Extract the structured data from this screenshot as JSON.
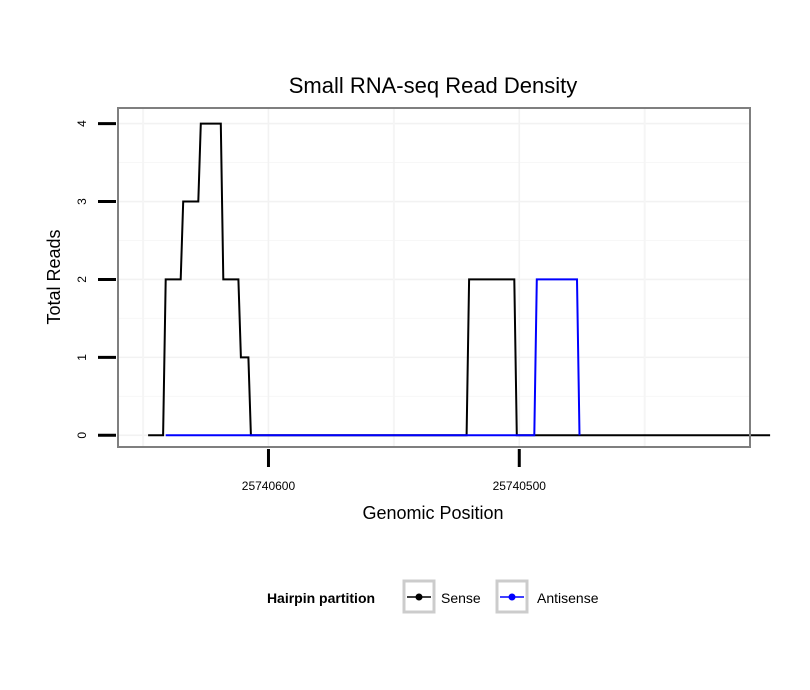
{
  "chart_data": {
    "type": "line",
    "title": "Small RNA-seq Read Density",
    "xlabel": "Genomic Position",
    "ylabel": "Total Reads",
    "x_reversed": true,
    "xlim": [
      25740660,
      25740408
    ],
    "ylim": [
      -0.15,
      4.2
    ],
    "x_ticks": [
      25740600,
      25740500
    ],
    "x_tick_labels": [
      "25740600",
      "25740500"
    ],
    "y_ticks": [
      0,
      1,
      2,
      3,
      4
    ],
    "y_tick_labels": [
      "0",
      "1",
      "2",
      "3",
      "4"
    ],
    "grid": true,
    "legend": {
      "title": "Hairpin partition",
      "position": "bottom"
    },
    "series": [
      {
        "name": "Sense",
        "color": "#000000",
        "x": [
          25740648,
          25740642,
          25740641,
          25740635,
          25740634,
          25740628,
          25740627,
          25740619,
          25740618,
          25740612,
          25740611,
          25740608,
          25740607,
          25740605,
          25740604,
          25740592,
          25740530,
          25740521,
          25740520,
          25740502,
          25740501,
          25740400
        ],
        "y": [
          0,
          0,
          2,
          2,
          3,
          3,
          4,
          4,
          2,
          2,
          1,
          1,
          0,
          0,
          0,
          0,
          0,
          0,
          2,
          2,
          0,
          0
        ]
      },
      {
        "name": "Antisense",
        "color": "#0000ff",
        "x": [
          25740641,
          25740604,
          25740502,
          25740494,
          25740493,
          25740477,
          25740476
        ],
        "y": [
          0,
          0,
          0,
          0,
          2,
          2,
          0
        ]
      }
    ]
  }
}
